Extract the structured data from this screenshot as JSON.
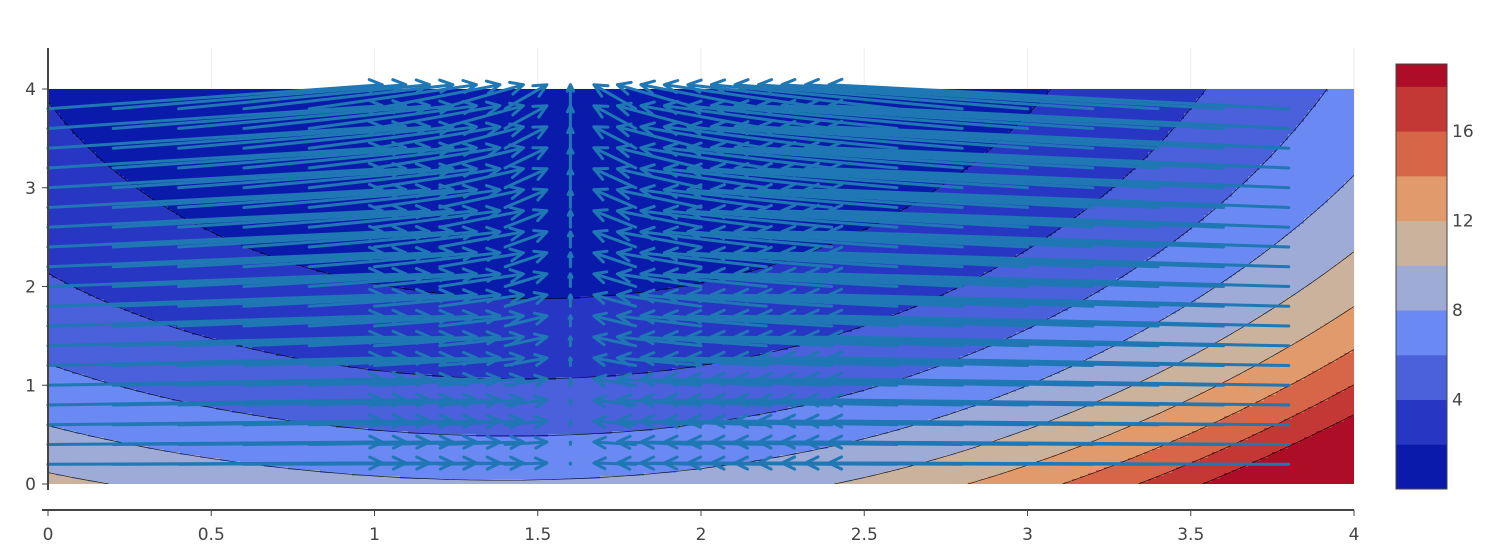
{
  "chart_data": {
    "type": "contour",
    "title": "",
    "xlabel": "",
    "ylabel": "",
    "xlim": [
      0,
      4
    ],
    "ylim": [
      0,
      4
    ],
    "x_ticks": [
      "0",
      "0.5",
      "1",
      "1.5",
      "2",
      "2.5",
      "3",
      "3.5",
      "4"
    ],
    "y_ticks": [
      "0",
      "1",
      "2",
      "3",
      "4"
    ],
    "grid": true,
    "series": [
      {
        "type": "contour",
        "z_range": [
          0,
          19
        ],
        "contour_levels": [
          2,
          4,
          6,
          8,
          10,
          12,
          14,
          16,
          18
        ],
        "colorscale": [
          "#0a1bab",
          "#2836c4",
          "#4b60db",
          "#6a89f2",
          "#9eabd6",
          "#cbb29c",
          "#e19a6b",
          "#d76649",
          "#c33835",
          "#ad0d26"
        ],
        "colorbar_ticks": [
          "4",
          "8",
          "12",
          "16"
        ],
        "colorbar_tick_values": [
          4,
          8,
          12,
          16
        ]
      },
      {
        "type": "quiver",
        "color": "#1f77b4",
        "x_start": 0,
        "x_step": 0.2,
        "x_count": 20,
        "y_start": 0.2,
        "y_step": 0.2,
        "y_count": 19,
        "u": "-2*(x - 1.6)",
        "v": "0.2*y"
      }
    ]
  }
}
